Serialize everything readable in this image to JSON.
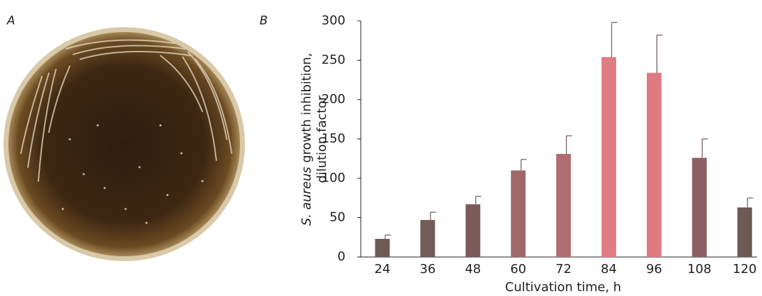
{
  "panel_labels": {
    "photo": "A",
    "chart": "B"
  },
  "chart_data": {
    "type": "bar",
    "categories": [
      "24",
      "36",
      "48",
      "60",
      "72",
      "84",
      "96",
      "108",
      "120"
    ],
    "values": [
      23,
      47,
      67,
      110,
      131,
      254,
      234,
      126,
      63
    ],
    "errors": [
      5,
      10,
      10,
      14,
      23,
      44,
      48,
      24,
      12
    ],
    "colors": [
      "#6d5a55",
      "#735b57",
      "#7a5c5a",
      "#a0686b",
      "#b06d71",
      "#e27c83",
      "#de7a81",
      "#8c6062",
      "#6d5a55"
    ],
    "error_color": "#6d5a55",
    "ylim": [
      0,
      300
    ],
    "yticks": [
      0,
      50,
      100,
      150,
      200,
      250,
      300
    ],
    "x_label": "Cultivation time, h",
    "y_label": {
      "italic": "S. aureus",
      "rest": "growth inhibition,",
      "line2": "dilution factor"
    }
  }
}
